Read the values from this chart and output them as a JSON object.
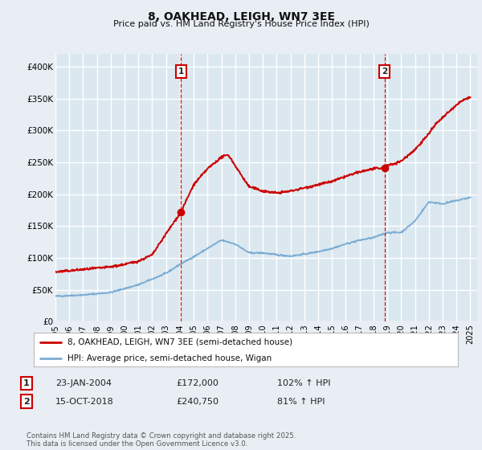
{
  "title": "8, OAKHEAD, LEIGH, WN7 3EE",
  "subtitle": "Price paid vs. HM Land Registry's House Price Index (HPI)",
  "background_color": "#e8eef4",
  "plot_bg_color": "#dce8f0",
  "red_color": "#cc0000",
  "blue_color": "#7aadd4",
  "grid_color": "#ffffff",
  "ylim": [
    0,
    420000
  ],
  "yticks": [
    0,
    50000,
    100000,
    150000,
    200000,
    250000,
    300000,
    350000,
    400000
  ],
  "ytick_labels": [
    "£0",
    "£50K",
    "£100K",
    "£150K",
    "£200K",
    "£250K",
    "£300K",
    "£350K",
    "£400K"
  ],
  "xlim": [
    1995,
    2025.5
  ],
  "vline1_x": 2004.07,
  "vline2_x": 2018.79,
  "marker1_y": 172000,
  "marker2_y": 240750,
  "legend_label1": "8, OAKHEAD, LEIGH, WN7 3EE (semi-detached house)",
  "legend_label2": "HPI: Average price, semi-detached house, Wigan",
  "footer": "Contains HM Land Registry data © Crown copyright and database right 2025.\nThis data is licensed under the Open Government Licence v3.0.",
  "xtick_years": [
    1995,
    1996,
    1997,
    1998,
    1999,
    2000,
    2001,
    2002,
    2003,
    2004,
    2005,
    2006,
    2007,
    2008,
    2009,
    2010,
    2011,
    2012,
    2013,
    2014,
    2015,
    2016,
    2017,
    2018,
    2019,
    2020,
    2021,
    2022,
    2023,
    2024,
    2025
  ],
  "table_entries": [
    [
      "1",
      "23-JAN-2004",
      "£172,000",
      "102% ↑ HPI"
    ],
    [
      "2",
      "15-OCT-2018",
      "£240,750",
      "81% ↑ HPI"
    ]
  ]
}
